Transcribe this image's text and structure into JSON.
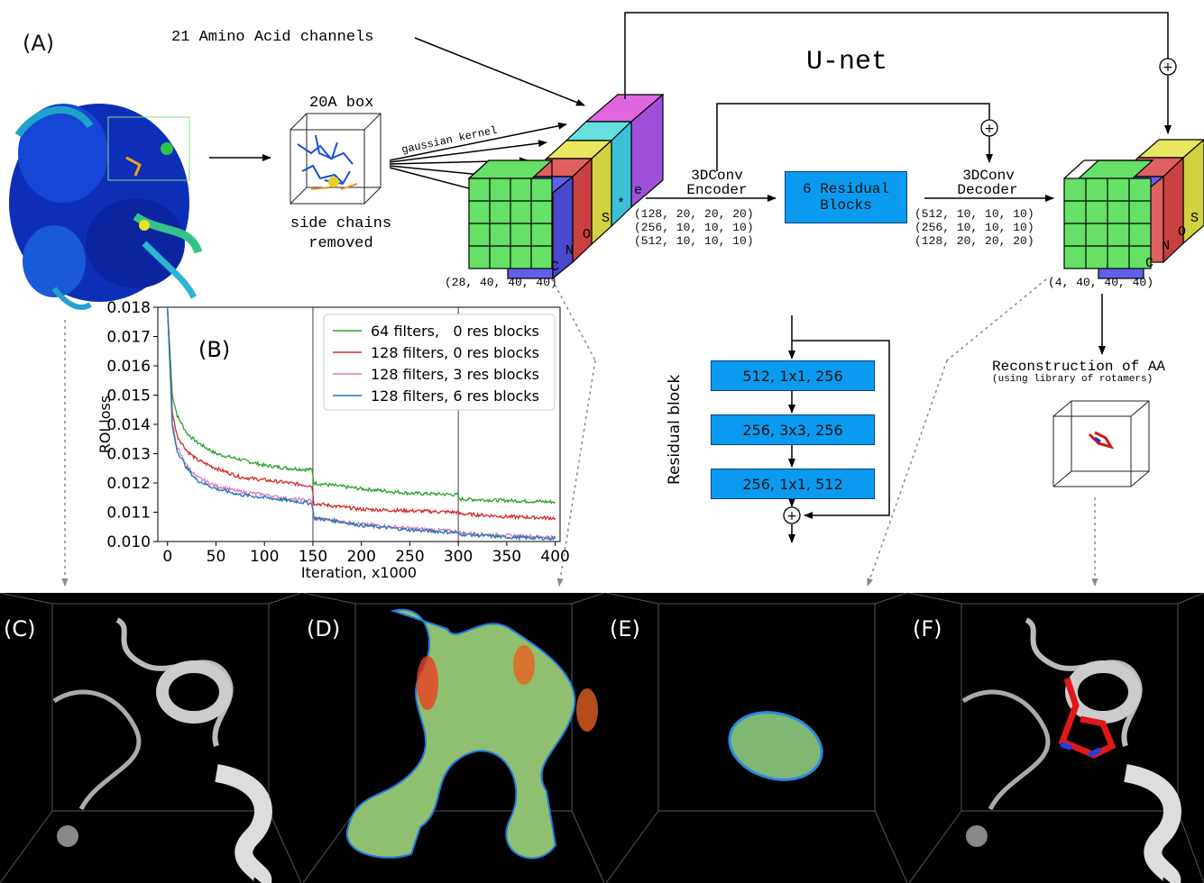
{
  "top": {
    "label_a": "(A)",
    "channels_label": "21 Amino Acid channels",
    "box_label": "20A box",
    "side_chains_label": "side chains\nremoved",
    "gaussian_label": "gaussian kernel",
    "unet_title": "U-net",
    "input_shape": "(28, 40, 40, 40)",
    "output_shape": "(4, 40, 40, 40)",
    "input_atoms": [
      "C",
      "N",
      "O",
      "S",
      "e",
      "*"
    ],
    "output_atoms": [
      "C",
      "N",
      "O",
      "S"
    ],
    "encoder_title": "3DConv",
    "encoder_sub": "Encoder",
    "encoder_dims": "(128, 20, 20, 20)\n(256, 10, 10, 10)\n(512, 10, 10, 10)",
    "residual_label": "6 Residual\nBlocks",
    "decoder_title": "3DConv",
    "decoder_sub": "Decoder",
    "decoder_dims": "(512, 10, 10, 10)\n(256, 10, 10, 10)\n(128, 20, 20, 20)",
    "reconstruction_title": "Reconstruction of AA",
    "reconstruction_sub": "(using library of rotamers)",
    "resblock_label": "Residual block",
    "resblock_layers": [
      "512, 1x1, 256",
      "256, 3x3, 256",
      "256, 1x1, 512"
    ]
  },
  "chart_data": {
    "type": "line",
    "panel_label": "(B)",
    "title": "",
    "xlabel": "Iteration, x1000",
    "ylabel": "ROI loss",
    "xlim": [
      -10,
      405
    ],
    "ylim": [
      0.01,
      0.018
    ],
    "xticks": [
      0,
      50,
      100,
      150,
      200,
      250,
      300,
      350,
      400
    ],
    "yticks": [
      0.01,
      0.011,
      0.012,
      0.013,
      0.014,
      0.015,
      0.016,
      0.017,
      0.018
    ],
    "vlines": [
      150,
      300
    ],
    "legend_position": "top-right",
    "grid": false,
    "series": [
      {
        "name": "64 filters,   0 res blocks",
        "color": "#2ca02c",
        "x": [
          0,
          5,
          10,
          20,
          30,
          50,
          75,
          100,
          125,
          149,
          151,
          175,
          200,
          250,
          299,
          301,
          350,
          400
        ],
        "y": [
          0.018,
          0.015,
          0.0143,
          0.0137,
          0.0134,
          0.013,
          0.0128,
          0.0126,
          0.0125,
          0.01245,
          0.012,
          0.0119,
          0.0118,
          0.01165,
          0.0116,
          0.01145,
          0.0114,
          0.01135
        ]
      },
      {
        "name": "128 filters, 0 res blocks",
        "color": "#d62728",
        "x": [
          0,
          5,
          10,
          20,
          30,
          50,
          75,
          100,
          125,
          149,
          151,
          175,
          200,
          250,
          299,
          301,
          350,
          400
        ],
        "y": [
          0.018,
          0.0144,
          0.0136,
          0.0131,
          0.0128,
          0.0125,
          0.0122,
          0.0121,
          0.012,
          0.0119,
          0.0113,
          0.0112,
          0.0111,
          0.01105,
          0.011,
          0.01095,
          0.01085,
          0.0108
        ]
      },
      {
        "name": "128 filters, 3 res blocks",
        "color": "#e377c2",
        "x": [
          0,
          5,
          10,
          20,
          30,
          50,
          75,
          100,
          125,
          149,
          151,
          175,
          200,
          250,
          299,
          301,
          350,
          400
        ],
        "y": [
          0.018,
          0.014,
          0.0132,
          0.0126,
          0.0122,
          0.0119,
          0.0117,
          0.0116,
          0.01145,
          0.0114,
          0.0108,
          0.0107,
          0.0106,
          0.01045,
          0.01035,
          0.0103,
          0.0102,
          0.01015
        ]
      },
      {
        "name": "128 filters, 6 res blocks",
        "color": "#1f77b4",
        "x": [
          0,
          5,
          10,
          20,
          30,
          50,
          75,
          100,
          125,
          149,
          151,
          175,
          200,
          250,
          299,
          301,
          350,
          400
        ],
        "y": [
          0.018,
          0.0139,
          0.0131,
          0.0125,
          0.0121,
          0.0118,
          0.0116,
          0.0115,
          0.0114,
          0.0113,
          0.0108,
          0.0107,
          0.01055,
          0.0104,
          0.0103,
          0.01025,
          0.01015,
          0.0101
        ]
      }
    ]
  },
  "panels": [
    {
      "label": "(C)"
    },
    {
      "label": "(D)"
    },
    {
      "label": "(E)"
    },
    {
      "label": "(F)"
    }
  ]
}
